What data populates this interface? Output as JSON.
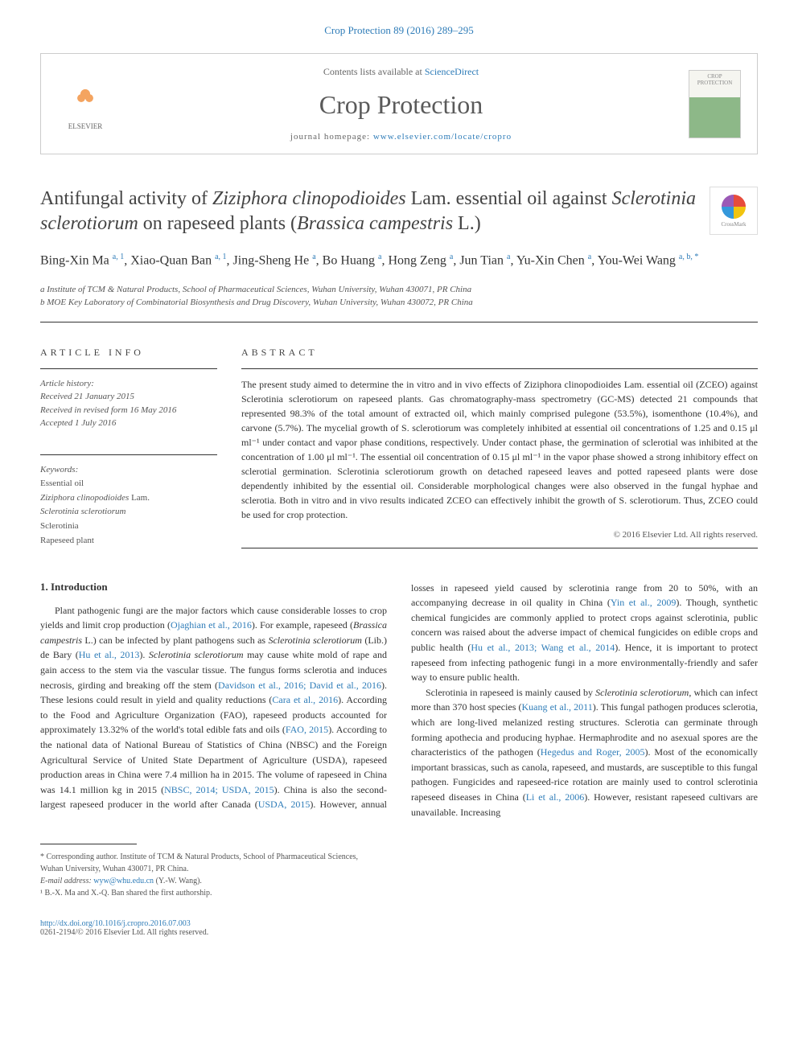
{
  "header": {
    "citation": "Crop Protection 89 (2016) 289–295",
    "contents_prefix": "Contents lists available at ",
    "sd_link": "ScienceDirect",
    "journal_name": "Crop Protection",
    "homepage_prefix": "journal homepage: ",
    "homepage_url": "www.elsevier.com/locate/cropro",
    "elsevier_label": "ELSEVIER",
    "cover_text": "CROP PROTECTION",
    "crossmark": "CrossMark"
  },
  "title": {
    "part1": "Antifungal activity of ",
    "italic1": "Ziziphora clinopodioides",
    "part2": " Lam. essential oil against ",
    "italic2": "Sclerotinia sclerotiorum",
    "part3": " on rapeseed plants (",
    "italic3": "Brassica campestris",
    "part4": " L.)"
  },
  "authors": {
    "a1": "Bing-Xin Ma",
    "a1_sup": "a, 1",
    "a2": "Xiao-Quan Ban",
    "a2_sup": "a, 1",
    "a3": "Jing-Sheng He",
    "a3_sup": "a",
    "a4": "Bo Huang",
    "a4_sup": "a",
    "a5": "Hong Zeng",
    "a5_sup": "a",
    "a6": "Jun Tian",
    "a6_sup": "a",
    "a7": "Yu-Xin Chen",
    "a7_sup": "a",
    "a8": "You-Wei Wang",
    "a8_sup": "a, b, *"
  },
  "affiliations": {
    "a": "a Institute of TCM & Natural Products, School of Pharmaceutical Sciences, Wuhan University, Wuhan 430071, PR China",
    "b": "b MOE Key Laboratory of Combinatorial Biosynthesis and Drug Discovery, Wuhan University, Wuhan 430072, PR China"
  },
  "article_info": {
    "heading": "ARTICLE INFO",
    "history_label": "Article history:",
    "received": "Received 21 January 2015",
    "revised": "Received in revised form 16 May 2016",
    "accepted": "Accepted 1 July 2016",
    "keywords_label": "Keywords:",
    "kw1": "Essential oil",
    "kw2_italic": "Ziziphora clinopodioides",
    "kw2_rest": " Lam.",
    "kw3": "Sclerotinia sclerotiorum",
    "kw4": "Sclerotinia",
    "kw5": "Rapeseed plant"
  },
  "abstract": {
    "heading": "ABSTRACT",
    "text": "The present study aimed to determine the in vitro and in vivo effects of Ziziphora clinopodioides Lam. essential oil (ZCEO) against Sclerotinia sclerotiorum on rapeseed plants. Gas chromatography-mass spectrometry (GC-MS) detected 21 compounds that represented 98.3% of the total amount of extracted oil, which mainly comprised pulegone (53.5%), isomenthone (10.4%), and carvone (5.7%). The mycelial growth of S. sclerotiorum was completely inhibited at essential oil concentrations of 1.25 and 0.15 μl ml⁻¹ under contact and vapor phase conditions, respectively. Under contact phase, the germination of sclerotial was inhibited at the concentration of 1.00 μl ml⁻¹. The essential oil concentration of 0.15 μl ml⁻¹ in the vapor phase showed a strong inhibitory effect on sclerotial germination. Sclerotinia sclerotiorum growth on detached rapeseed leaves and potted rapeseed plants were dose dependently inhibited by the essential oil. Considerable morphological changes were also observed in the fungal hyphae and sclerotia. Both in vitro and in vivo results indicated ZCEO can effectively inhibit the growth of S. sclerotiorum. Thus, ZCEO could be used for crop protection.",
    "copyright": "© 2016 Elsevier Ltd. All rights reserved."
  },
  "intro": {
    "heading": "1. Introduction",
    "p1a": "Plant pathogenic fungi are the major factors which cause considerable losses to crop yields and limit crop production (",
    "p1_ref1": "Ojaghian et al., 2016",
    "p1b": "). For example, rapeseed (",
    "p1_italic1": "Brassica campestris",
    "p1c": " L.) can be infected by plant pathogens such as ",
    "p1_italic2": "Sclerotinia sclerotiorum",
    "p1d": " (Lib.) de Bary (",
    "p1_ref2": "Hu et al., 2013",
    "p1e": "). ",
    "p1_italic3": "Sclerotinia sclerotiorum",
    "p1f": " may cause white mold of rape and gain access to the stem via the vascular tissue. The fungus forms sclerotia and induces necrosis, girding and breaking off the stem (",
    "p1_ref3": "Davidson et al., 2016; David et al., 2016",
    "p1g": "). These lesions could result in yield and quality reductions (",
    "p1_ref4": "Cara et al., 2016",
    "p1h": "). According to the Food and Agriculture Organization (FAO), rapeseed products accounted for approximately 13.32% of the world's total edible fats and oils (",
    "p1_ref5": "FAO, 2015",
    "p1i": "). According to the national data of National Bureau of Statistics of China (NBSC) and the Foreign Agricultural Service of United State Department of Agriculture (USDA), rapeseed production areas in China were 7.4 million ha in 2015. The volume of rapeseed in China was 14.1 million kg in 2015 (",
    "p1_ref6": "NBSC, 2014; USDA, 2015",
    "p1j": "). China is also the second-largest rapeseed producer in the world after Canada (",
    "p1_ref7": "USDA, 2015",
    "p1k": "). However, annual losses in rapeseed yield caused by sclerotinia range from 20 to 50%, with an accompanying decrease in oil quality in China (",
    "p1_ref8": "Yin et al., 2009",
    "p1l": "). Though, synthetic chemical fungicides are commonly applied to protect crops against sclerotinia, public concern was raised about the adverse impact of chemical fungicides on edible crops and public health (",
    "p1_ref9": "Hu et al., 2013; Wang et al., 2014",
    "p1m": "). Hence, it is important to protect rapeseed from infecting pathogenic fungi in a more environmentally-friendly and safer way to ensure public health.",
    "p2a": "Sclerotinia in rapeseed is mainly caused by ",
    "p2_italic1": "Sclerotinia sclerotiorum",
    "p2b": ", which can infect more than 370 host species (",
    "p2_ref1": "Kuang et al., 2011",
    "p2c": "). This fungal pathogen produces sclerotia, which are long-lived melanized resting structures. Sclerotia can germinate through forming apothecia and producing hyphae. Hermaphrodite and no asexual spores are the characteristics of the pathogen (",
    "p2_ref2": "Hegedus and Roger, 2005",
    "p2d": "). Most of the economically important brassicas, such as canola, rapeseed, and mustards, are susceptible to this fungal pathogen. Fungicides and rapeseed-rice rotation are mainly used to control sclerotinia rapeseed diseases in China (",
    "p2_ref3": "Li et al., 2006",
    "p2e": "). However, resistant rapeseed cultivars are unavailable. Increasing"
  },
  "footnotes": {
    "corr": "* Corresponding author. Institute of TCM & Natural Products, School of Pharmaceutical Sciences, Wuhan University, Wuhan 430071, PR China.",
    "email_label": "E-mail address: ",
    "email": "wyw@whu.edu.cn",
    "email_name": " (Y.-W. Wang).",
    "note1": "¹ B.-X. Ma and X.-Q. Ban shared the first authorship."
  },
  "doi": {
    "link": "http://dx.doi.org/10.1016/j.cropro.2016.07.003",
    "issn": "0261-2194/© 2016 Elsevier Ltd. All rights reserved."
  }
}
